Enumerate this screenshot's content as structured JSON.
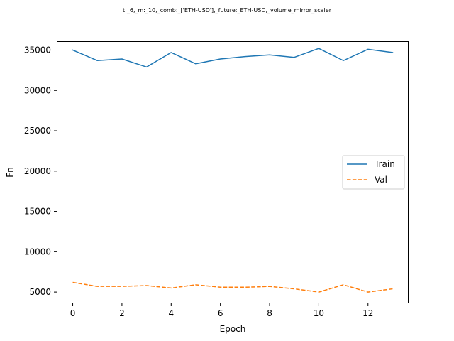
{
  "chart_data": {
    "type": "line",
    "title": "t:_6,_m:_10,_comb:_['ETH-USD'],_future:_ETH-USD,_volume_mirror_scaler",
    "xlabel": "Epoch",
    "ylabel": "Fn",
    "x": [
      0,
      1,
      2,
      3,
      4,
      5,
      6,
      7,
      8,
      9,
      10,
      11,
      12,
      13
    ],
    "xlim": [
      -0.65,
      13.65
    ],
    "ylim": [
      3600,
      36100
    ],
    "xticks": [
      0,
      2,
      4,
      6,
      8,
      10,
      12
    ],
    "yticks": [
      5000,
      10000,
      15000,
      20000,
      25000,
      30000,
      35000
    ],
    "grid": false,
    "legend_position": "center-right",
    "series": [
      {
        "name": "Train",
        "color": "#1f77b4",
        "style": "solid",
        "values": [
          35000,
          33700,
          33900,
          32900,
          34700,
          33300,
          33900,
          34200,
          34400,
          34100,
          35200,
          33700,
          35100,
          34700
        ]
      },
      {
        "name": "Val",
        "color": "#ff7f0e",
        "style": "dashed",
        "values": [
          6200,
          5700,
          5700,
          5800,
          5500,
          5900,
          5600,
          5600,
          5700,
          5400,
          5000,
          5900,
          5000,
          5400
        ]
      }
    ]
  }
}
